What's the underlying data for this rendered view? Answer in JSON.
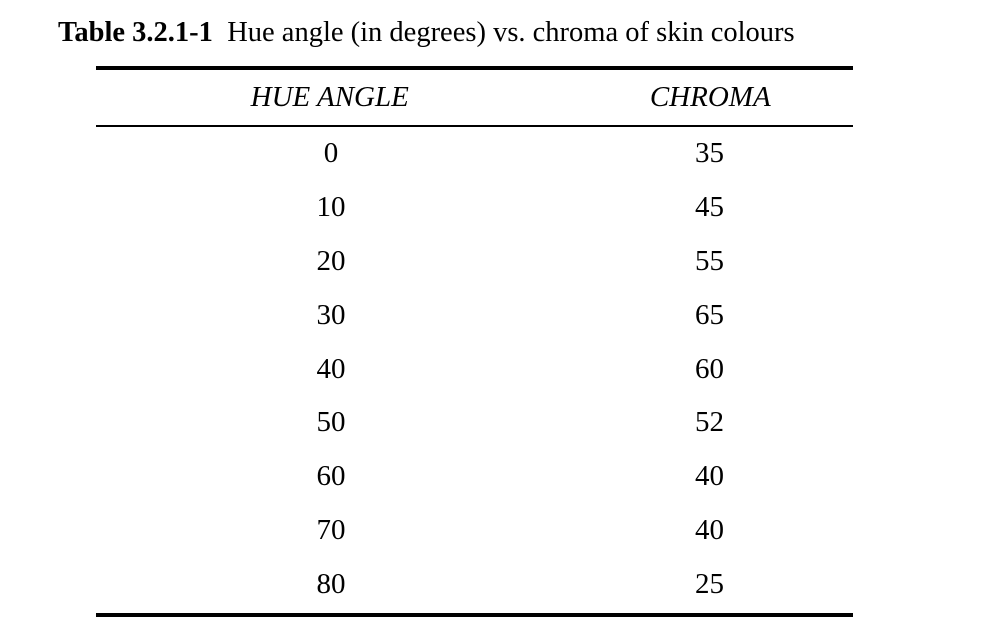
{
  "caption": {
    "label": "Table 3.2.1-1",
    "text": "Hue angle (in degrees) vs. chroma of skin colours"
  },
  "table": {
    "columns": [
      "HUE ANGLE",
      "CHROMA"
    ],
    "rows": [
      [
        "0",
        "35"
      ],
      [
        "10",
        "45"
      ],
      [
        "20",
        "55"
      ],
      [
        "30",
        "65"
      ],
      [
        "40",
        "60"
      ],
      [
        "50",
        "52"
      ],
      [
        "60",
        "40"
      ],
      [
        "70",
        "40"
      ],
      [
        "80",
        "25"
      ]
    ]
  }
}
